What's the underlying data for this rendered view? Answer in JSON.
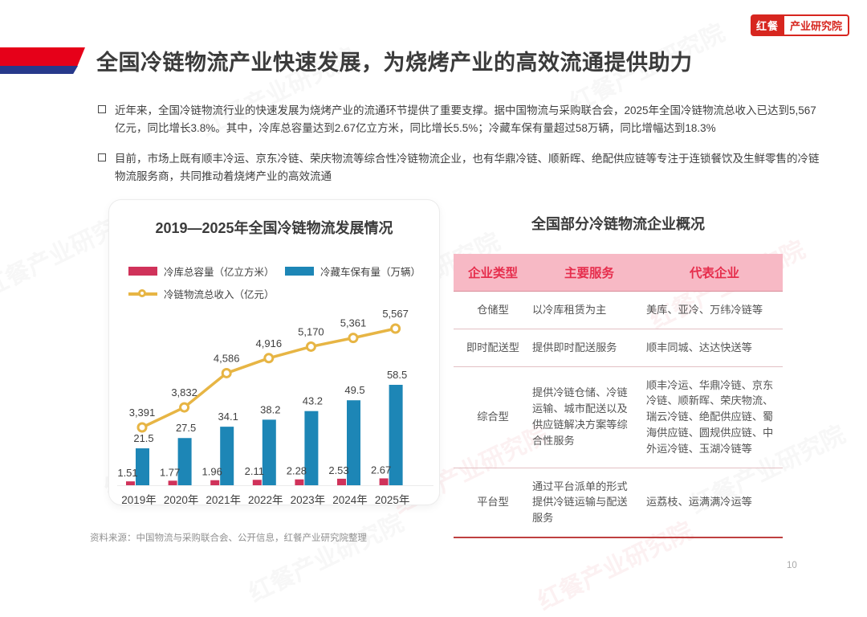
{
  "page": {
    "number": "10",
    "watermark": "红餐产业研究院"
  },
  "logo": {
    "brand": "红餐",
    "suffix": "产业研究院"
  },
  "header": {
    "title": "全国冷链物流产业快速发展，为烧烤产业的高效流通提供助力"
  },
  "bullets": [
    {
      "text": "近年来，全国冷链物流行业的快速发展为烧烤产业的流通环节提供了重要支撑。据中国物流与采购联合会，2025年全国冷链物流总收入已达到5,567亿元，同比增长3.8%。其中，冷库总容量达到2.67亿立方米，同比增长5.5%；冷藏车保有量超过58万辆，同比增幅达到18.3%"
    },
    {
      "text": "目前，市场上既有顺丰冷运、京东冷链、荣庆物流等综合性冷链物流企业，也有华鼎冷链、顺新晖、绝配供应链等专注于连锁餐饮及生鲜零售的冷链物流服务商，共同推动着烧烤产业的高效流通"
    }
  ],
  "chart_data": {
    "type": "combo",
    "title": "2019—2025年全国冷链物流发展情况",
    "categories": [
      "2019年",
      "2020年",
      "2021年",
      "2022年",
      "2023年",
      "2024年",
      "2025年"
    ],
    "series": [
      {
        "name": "冷库总容量（亿立方米）",
        "kind": "bar",
        "color": "#d0325a",
        "values": [
          1.51,
          1.77,
          1.96,
          2.11,
          2.28,
          2.53,
          2.67
        ],
        "labels": [
          "1.51",
          "1.77",
          "1.96",
          "2.11",
          "2.28",
          "2.53",
          "2.67"
        ]
      },
      {
        "name": "冷藏车保有量（万辆）",
        "kind": "bar",
        "color": "#1d86b6",
        "values": [
          21.5,
          27.5,
          34.1,
          38.2,
          43.2,
          49.5,
          58.5
        ],
        "labels": [
          "21.5",
          "27.5",
          "34.1",
          "38.2",
          "43.2",
          "49.5",
          "58.5"
        ]
      },
      {
        "name": "冷链物流总收入（亿元）",
        "kind": "line",
        "color": "#e7b544",
        "values": [
          3391,
          3832,
          4586,
          4916,
          5170,
          5361,
          5567
        ],
        "labels": [
          "3,391",
          "3,832",
          "4,586",
          "4,916",
          "5,170",
          "5,361",
          "5,567"
        ]
      }
    ],
    "grid": false,
    "legend_position": "top"
  },
  "table": {
    "title": "全国部分冷链物流企业概况",
    "headers": [
      "企业类型",
      "主要服务",
      "代表企业"
    ],
    "header_bg": "#f7b9c5",
    "header_color": "#e62e4d",
    "rows": [
      [
        "仓储型",
        "以冷库租赁为主",
        "美库、亚冷、万纬冷链等"
      ],
      [
        "即时配送型",
        "提供即时配送服务",
        "顺丰同城、达达快送等"
      ],
      [
        "综合型",
        "提供冷链仓储、冷链运输、城市配送以及供应链解决方案等综合性服务",
        "顺丰冷运、华鼎冷链、京东冷链、顺新晖、荣庆物流、瑞云冷链、绝配供应链、蜀海供应链、圆规供应链、中外运冷链、玉湖冷链等"
      ],
      [
        "平台型",
        "通过平台派单的形式提供冷链运输与配送服务",
        "运荔枝、运满满冷运等"
      ]
    ]
  },
  "footer": {
    "source": "资料来源：中国物流与采购联合会、公开信息，红餐产业研究院整理"
  }
}
